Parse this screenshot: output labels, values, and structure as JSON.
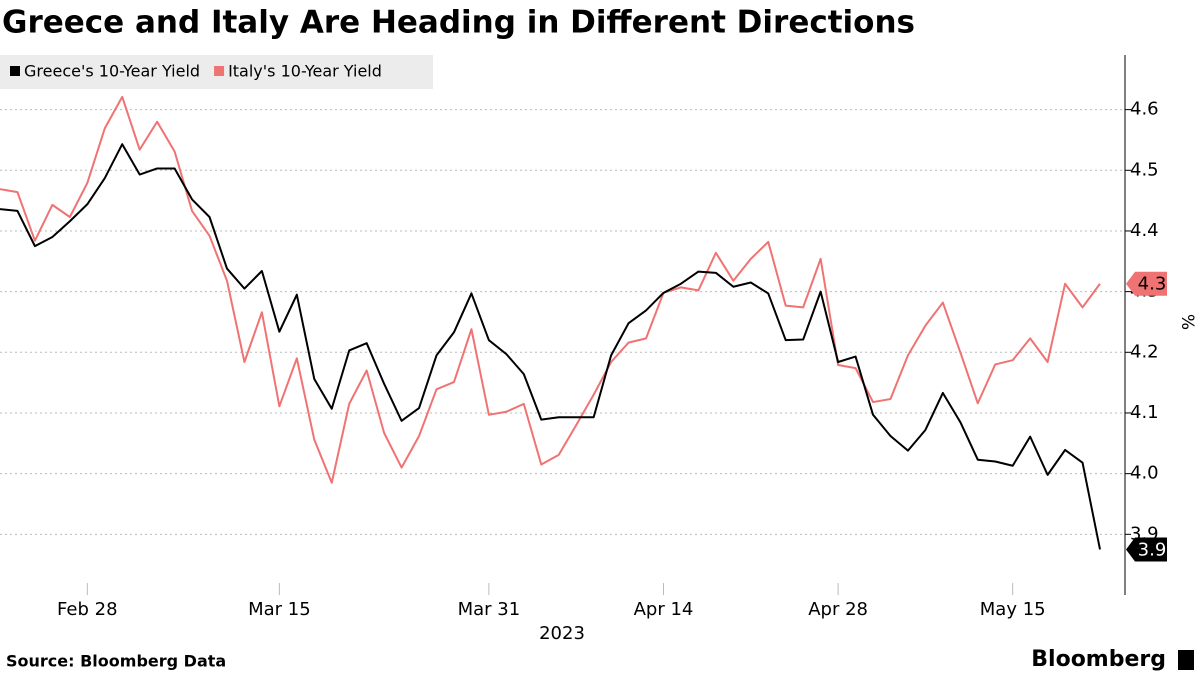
{
  "chart_data": {
    "type": "line",
    "title": "Greece and Italy Are Heading in Different Directions",
    "source": "Source: Bloomberg Data",
    "brand": "Bloomberg",
    "y_unit": "%",
    "x_year": "2023",
    "x": [
      "2023-02-21",
      "2023-02-22",
      "2023-02-23",
      "2023-02-24",
      "2023-02-27",
      "2023-02-28",
      "2023-03-01",
      "2023-03-02",
      "2023-03-03",
      "2023-03-06",
      "2023-03-07",
      "2023-03-08",
      "2023-03-09",
      "2023-03-10",
      "2023-03-13",
      "2023-03-14",
      "2023-03-15",
      "2023-03-16",
      "2023-03-17",
      "2023-03-20",
      "2023-03-21",
      "2023-03-22",
      "2023-03-23",
      "2023-03-24",
      "2023-03-27",
      "2023-03-28",
      "2023-03-29",
      "2023-03-30",
      "2023-03-31",
      "2023-04-03",
      "2023-04-04",
      "2023-04-05",
      "2023-04-06",
      "2023-04-07",
      "2023-04-10",
      "2023-04-11",
      "2023-04-12",
      "2023-04-13",
      "2023-04-14",
      "2023-04-17",
      "2023-04-18",
      "2023-04-19",
      "2023-04-20",
      "2023-04-21",
      "2023-04-24",
      "2023-04-25",
      "2023-04-26",
      "2023-04-27",
      "2023-04-28",
      "2023-05-02",
      "2023-05-03",
      "2023-05-04",
      "2023-05-05",
      "2023-05-08",
      "2023-05-09",
      "2023-05-10",
      "2023-05-11",
      "2023-05-12",
      "2023-05-15",
      "2023-05-16",
      "2023-05-17",
      "2023-05-18",
      "2023-05-19",
      "2023-05-22"
    ],
    "xticks": [
      {
        "value": "2023-02-28",
        "label": "Feb 28"
      },
      {
        "value": "2023-03-15",
        "label": "Mar 15"
      },
      {
        "value": "2023-03-31",
        "label": "Mar 31"
      },
      {
        "value": "2023-04-14",
        "label": "Apr 14"
      },
      {
        "value": "2023-04-28",
        "label": "Apr 28"
      },
      {
        "value": "2023-05-15",
        "label": "May 15"
      }
    ],
    "ylim": [
      3.8,
      4.69
    ],
    "yticks": [
      3.9,
      {
        "value": 4.0,
        "label": "4.0"
      },
      4.1,
      4.2,
      4.3,
      4.4,
      4.5,
      4.6
    ],
    "grid": true,
    "legend": "top-left",
    "series": [
      {
        "name": "Greece's 10-Year Yield",
        "color": "#000000",
        "last_label": "3.9",
        "values": [
          4.436,
          4.433,
          4.375,
          4.39,
          4.416,
          4.444,
          4.487,
          4.543,
          4.493,
          4.503,
          4.503,
          4.452,
          4.423,
          4.338,
          4.305,
          4.334,
          4.234,
          4.295,
          4.156,
          4.107,
          4.203,
          4.215,
          4.148,
          4.087,
          4.108,
          4.195,
          4.233,
          4.297,
          4.22,
          4.197,
          4.164,
          4.089,
          4.093,
          4.093,
          4.093,
          4.195,
          4.248,
          4.269,
          4.298,
          4.313,
          4.333,
          4.331,
          4.308,
          4.315,
          4.297,
          4.22,
          4.221,
          4.3,
          4.184,
          4.193,
          4.097,
          4.062,
          4.038,
          4.072,
          4.133,
          4.085,
          4.023,
          4.02,
          4.013,
          4.061,
          3.998,
          4.039,
          4.018,
          3.875
        ]
      },
      {
        "name": "Italy's 10-Year Yield",
        "color": "#f07373",
        "last_label": "4.3",
        "values": [
          4.469,
          4.464,
          4.384,
          4.443,
          4.423,
          4.479,
          4.569,
          4.621,
          4.534,
          4.58,
          4.531,
          4.433,
          4.392,
          4.318,
          4.184,
          4.266,
          4.111,
          4.19,
          4.056,
          3.985,
          4.115,
          4.17,
          4.067,
          4.01,
          4.062,
          4.139,
          4.151,
          4.238,
          4.097,
          4.102,
          4.115,
          4.015,
          4.031,
          4.08,
          4.13,
          4.184,
          4.216,
          4.223,
          4.298,
          4.307,
          4.302,
          4.364,
          4.318,
          4.354,
          4.382,
          4.277,
          4.274,
          4.354,
          4.179,
          4.174,
          4.118,
          4.123,
          4.195,
          4.244,
          4.282,
          4.2,
          4.116,
          4.18,
          4.187,
          4.223,
          4.184,
          4.313,
          4.274,
          4.313
        ]
      }
    ]
  }
}
